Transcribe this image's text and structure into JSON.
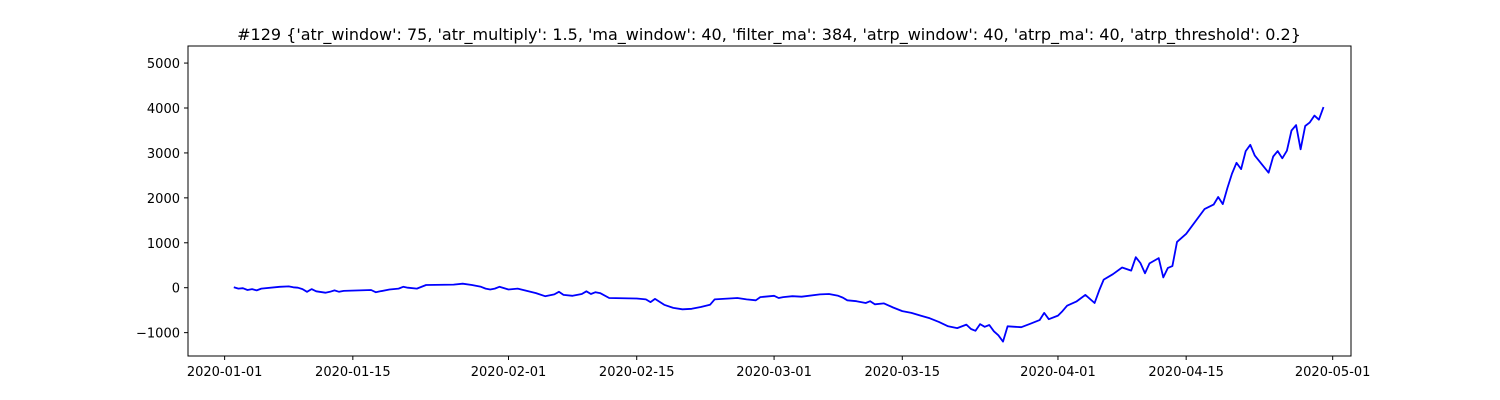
{
  "chart_data": {
    "type": "line",
    "title": "#129 {'atr_window': 75, 'atr_multiply': 1.5, 'ma_window': 40, 'filter_ma': 384, 'atrp_window': 40, 'atrp_ma': 40, 'atrp_threshold': 0.2}",
    "xlabel": "",
    "ylabel": "",
    "x_type": "date",
    "xlim": [
      "2019-12-28",
      "2020-05-03"
    ],
    "ylim": [
      -1520,
      5380
    ],
    "x_ticks": [
      "2020-01-01",
      "2020-01-15",
      "2020-02-01",
      "2020-02-15",
      "2020-03-01",
      "2020-03-15",
      "2020-04-01",
      "2020-04-15",
      "2020-05-01"
    ],
    "x_tick_labels": [
      "2020-01-01",
      "2020-01-15",
      "2020-02-01",
      "2020-02-15",
      "2020-03-01",
      "2020-03-15",
      "2020-04-01",
      "2020-04-15",
      "2020-05-01"
    ],
    "y_ticks": [
      -1000,
      0,
      1000,
      2000,
      3000,
      4000,
      5000
    ],
    "y_tick_labels": [
      "−1000",
      "0",
      "1000",
      "2000",
      "3000",
      "4000",
      "5000"
    ],
    "grid": false,
    "legend": false,
    "series": [
      {
        "color": "#0000ff",
        "points": [
          [
            "2020-01-02",
            10
          ],
          [
            "2020-01-02T12:00",
            -20
          ],
          [
            "2020-01-03",
            -10
          ],
          [
            "2020-01-03T12:00",
            -50
          ],
          [
            "2020-01-04",
            -30
          ],
          [
            "2020-01-04T12:00",
            -60
          ],
          [
            "2020-01-05",
            -20
          ],
          [
            "2020-01-07",
            20
          ],
          [
            "2020-01-08",
            30
          ],
          [
            "2020-01-08T12:00",
            10
          ],
          [
            "2020-01-09",
            0
          ],
          [
            "2020-01-09T12:00",
            -30
          ],
          [
            "2020-01-10",
            -90
          ],
          [
            "2020-01-10T12:00",
            -30
          ],
          [
            "2020-01-11",
            -80
          ],
          [
            "2020-01-12",
            -110
          ],
          [
            "2020-01-12T12:00",
            -90
          ],
          [
            "2020-01-13",
            -60
          ],
          [
            "2020-01-13T12:00",
            -90
          ],
          [
            "2020-01-14",
            -70
          ],
          [
            "2020-01-17",
            -50
          ],
          [
            "2020-01-17T12:00",
            -100
          ],
          [
            "2020-01-18",
            -80
          ],
          [
            "2020-01-19",
            -40
          ],
          [
            "2020-01-20",
            -20
          ],
          [
            "2020-01-20T12:00",
            20
          ],
          [
            "2020-01-21",
            0
          ],
          [
            "2020-01-22",
            -20
          ],
          [
            "2020-01-23",
            60
          ],
          [
            "2020-01-26",
            70
          ],
          [
            "2020-01-27",
            90
          ],
          [
            "2020-01-28",
            60
          ],
          [
            "2020-01-29",
            20
          ],
          [
            "2020-01-29T12:00",
            -20
          ],
          [
            "2020-01-30",
            -40
          ],
          [
            "2020-01-30T12:00",
            -20
          ],
          [
            "2020-01-31",
            20
          ],
          [
            "2020-02-01",
            -40
          ],
          [
            "2020-02-02",
            -20
          ],
          [
            "2020-02-04",
            -120
          ],
          [
            "2020-02-05",
            -190
          ],
          [
            "2020-02-06",
            -150
          ],
          [
            "2020-02-06T12:00",
            -90
          ],
          [
            "2020-02-07",
            -160
          ],
          [
            "2020-02-08",
            -180
          ],
          [
            "2020-02-09",
            -140
          ],
          [
            "2020-02-09T12:00",
            -80
          ],
          [
            "2020-02-10",
            -140
          ],
          [
            "2020-02-10T12:00",
            -100
          ],
          [
            "2020-02-11",
            -120
          ],
          [
            "2020-02-12",
            -230
          ],
          [
            "2020-02-15",
            -240
          ],
          [
            "2020-02-16",
            -260
          ],
          [
            "2020-02-16T12:00",
            -320
          ],
          [
            "2020-02-17",
            -250
          ],
          [
            "2020-02-18",
            -380
          ],
          [
            "2020-02-19",
            -450
          ],
          [
            "2020-02-20",
            -480
          ],
          [
            "2020-02-21",
            -470
          ],
          [
            "2020-02-22",
            -430
          ],
          [
            "2020-02-23",
            -380
          ],
          [
            "2020-02-23T12:00",
            -260
          ],
          [
            "2020-02-26",
            -230
          ],
          [
            "2020-02-27",
            -260
          ],
          [
            "2020-02-28",
            -280
          ],
          [
            "2020-02-28T12:00",
            -210
          ],
          [
            "2020-02-29",
            -200
          ],
          [
            "2020-03-01",
            -180
          ],
          [
            "2020-03-01T12:00",
            -230
          ],
          [
            "2020-03-02",
            -210
          ],
          [
            "2020-03-03",
            -190
          ],
          [
            "2020-03-04",
            -200
          ],
          [
            "2020-03-06",
            -150
          ],
          [
            "2020-03-07",
            -140
          ],
          [
            "2020-03-08",
            -180
          ],
          [
            "2020-03-08T12:00",
            -220
          ],
          [
            "2020-03-09",
            -280
          ],
          [
            "2020-03-10",
            -300
          ],
          [
            "2020-03-11",
            -340
          ],
          [
            "2020-03-11T12:00",
            -300
          ],
          [
            "2020-03-12",
            -370
          ],
          [
            "2020-03-13",
            -350
          ],
          [
            "2020-03-14",
            -440
          ],
          [
            "2020-03-15",
            -520
          ],
          [
            "2020-03-16",
            -560
          ],
          [
            "2020-03-17",
            -620
          ],
          [
            "2020-03-18",
            -680
          ],
          [
            "2020-03-19",
            -760
          ],
          [
            "2020-03-20",
            -860
          ],
          [
            "2020-03-21",
            -900
          ],
          [
            "2020-03-22",
            -820
          ],
          [
            "2020-03-22T12:00",
            -920
          ],
          [
            "2020-03-23",
            -960
          ],
          [
            "2020-03-23T12:00",
            -810
          ],
          [
            "2020-03-24",
            -870
          ],
          [
            "2020-03-24T12:00",
            -830
          ],
          [
            "2020-03-25",
            -970
          ],
          [
            "2020-03-25T12:00",
            -1060
          ],
          [
            "2020-03-26",
            -1200
          ],
          [
            "2020-03-26T12:00",
            -860
          ],
          [
            "2020-03-28",
            -880
          ],
          [
            "2020-03-29",
            -800
          ],
          [
            "2020-03-30",
            -720
          ],
          [
            "2020-03-30T12:00",
            -560
          ],
          [
            "2020-03-31",
            -700
          ],
          [
            "2020-04-01",
            -620
          ],
          [
            "2020-04-01T12:00",
            -520
          ],
          [
            "2020-04-02",
            -400
          ],
          [
            "2020-04-03",
            -310
          ],
          [
            "2020-04-04",
            -160
          ],
          [
            "2020-04-05",
            -340
          ],
          [
            "2020-04-05T12:00",
            -60
          ],
          [
            "2020-04-06",
            180
          ],
          [
            "2020-04-07",
            300
          ],
          [
            "2020-04-08",
            450
          ],
          [
            "2020-04-09",
            380
          ],
          [
            "2020-04-09T12:00",
            680
          ],
          [
            "2020-04-10",
            550
          ],
          [
            "2020-04-10T12:00",
            320
          ],
          [
            "2020-04-11",
            540
          ],
          [
            "2020-04-12",
            660
          ],
          [
            "2020-04-12T12:00",
            230
          ],
          [
            "2020-04-13",
            440
          ],
          [
            "2020-04-13T12:00",
            480
          ],
          [
            "2020-04-14",
            1020
          ],
          [
            "2020-04-15",
            1200
          ],
          [
            "2020-04-17",
            1750
          ],
          [
            "2020-04-18",
            1850
          ],
          [
            "2020-04-18T12:00",
            2020
          ],
          [
            "2020-04-19",
            1860
          ],
          [
            "2020-04-19T12:00",
            2220
          ],
          [
            "2020-04-20",
            2540
          ],
          [
            "2020-04-20T12:00",
            2780
          ],
          [
            "2020-04-21",
            2640
          ],
          [
            "2020-04-21T12:00",
            3040
          ],
          [
            "2020-04-22",
            3180
          ],
          [
            "2020-04-22T12:00",
            2940
          ],
          [
            "2020-04-24",
            2560
          ],
          [
            "2020-04-24T12:00",
            2920
          ],
          [
            "2020-04-25",
            3040
          ],
          [
            "2020-04-25T12:00",
            2880
          ],
          [
            "2020-04-26",
            3050
          ],
          [
            "2020-04-26T12:00",
            3500
          ],
          [
            "2020-04-27",
            3620
          ],
          [
            "2020-04-27T12:00",
            3080
          ],
          [
            "2020-04-28",
            3600
          ],
          [
            "2020-04-28T12:00",
            3680
          ],
          [
            "2020-04-29",
            3830
          ],
          [
            "2020-04-29T12:00",
            3740
          ],
          [
            "2020-04-30",
            4020
          ]
        ]
      }
    ]
  }
}
